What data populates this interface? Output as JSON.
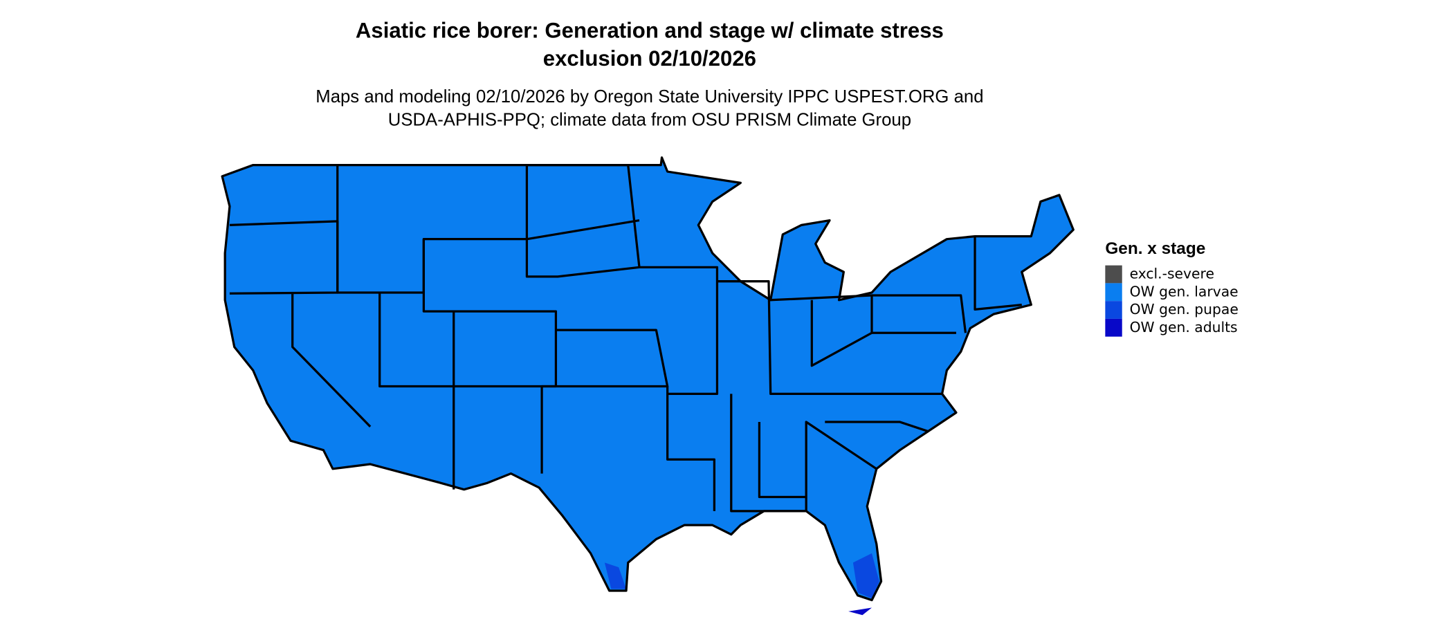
{
  "title_lines": [
    "Asiatic rice borer: Generation and stage w/ climate stress",
    "exclusion 02/10/2026"
  ],
  "subtitle_lines": [
    "Maps and modeling 02/10/2026 by Oregon State University IPPC USPEST.ORG and",
    "USDA-APHIS-PPQ; climate data from OSU PRISM Climate Group"
  ],
  "legend": {
    "title": "Gen. x stage",
    "items": [
      {
        "label": "excl.-severe",
        "color": "#4d4d4d"
      },
      {
        "label": "OW gen. larvae",
        "color": "#0a7ef0"
      },
      {
        "label": "OW gen. pupae",
        "color": "#0a48e0"
      },
      {
        "label": "OW gen. adults",
        "color": "#0808c8"
      }
    ]
  }
}
